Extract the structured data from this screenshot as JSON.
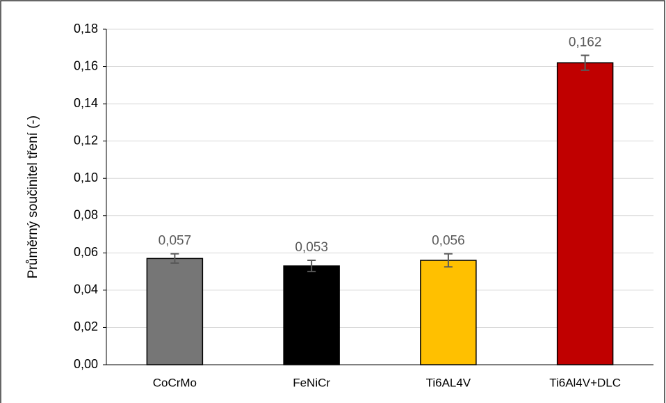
{
  "chart_data": {
    "type": "bar",
    "y_axis_label": "Průměrný součinitel tření (-)",
    "categories": [
      "CoCrMo",
      "FeNiCr",
      "Ti6AL4V",
      "Ti6Al4V+DLC"
    ],
    "values": [
      0.057,
      0.053,
      0.056,
      0.162
    ],
    "value_labels": [
      "0,057",
      "0,053",
      "0,056",
      "0,162"
    ],
    "errors": [
      0.0025,
      0.003,
      0.0035,
      0.004
    ],
    "colors": [
      "#767676",
      "#000000",
      "#ffc000",
      "#c00000"
    ],
    "ylim": [
      0,
      0.18
    ],
    "yticks": [
      {
        "value": 0,
        "label": "0,00"
      },
      {
        "value": 0.02,
        "label": "0,02"
      },
      {
        "value": 0.04,
        "label": "0,04"
      },
      {
        "value": 0.06,
        "label": "0,06"
      },
      {
        "value": 0.08,
        "label": "0,08"
      },
      {
        "value": 0.1,
        "label": "0,10"
      },
      {
        "value": 0.12,
        "label": "0,12"
      },
      {
        "value": 0.14,
        "label": "0,14"
      },
      {
        "value": 0.16,
        "label": "0,16"
      },
      {
        "value": 0.18,
        "label": "0,18"
      }
    ],
    "grid": true
  }
}
